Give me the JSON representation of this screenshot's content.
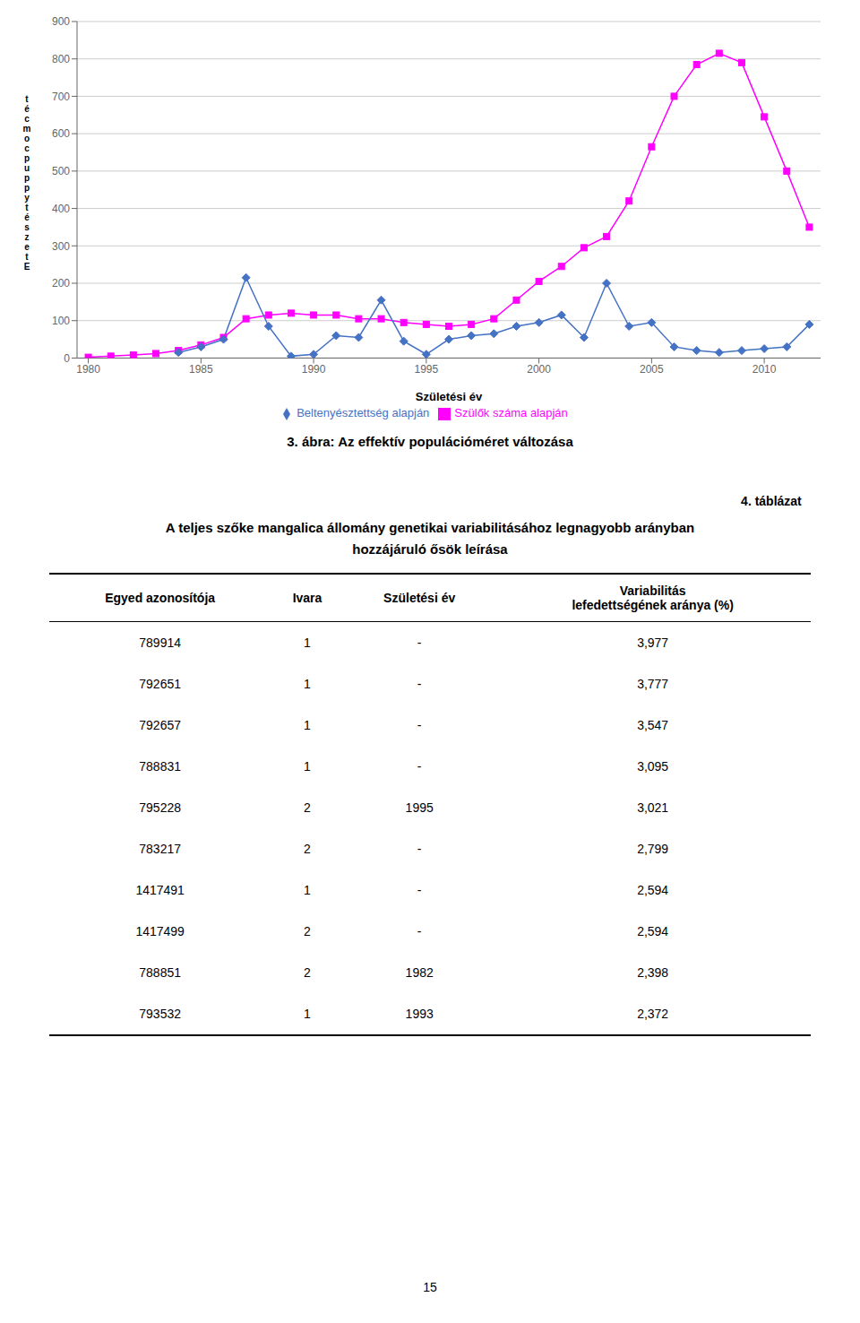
{
  "chart_data": {
    "type": "line",
    "title": "3. ábra: Az effektív populációméret változása",
    "x_label": "Születési év",
    "y_label": "t\né\nc\nm\no\nc\np\nu\np\np\ny\nt\né\ns\nz\ne\nt\nE",
    "x": [
      1980,
      1981,
      1982,
      1983,
      1984,
      1985,
      1986,
      1987,
      1988,
      1989,
      1990,
      1991,
      1992,
      1993,
      1994,
      1995,
      1996,
      1997,
      1998,
      1999,
      2000,
      2001,
      2002,
      2003,
      2004,
      2005,
      2006,
      2007,
      2008,
      2009,
      2010,
      2011,
      2012
    ],
    "series": [
      {
        "name": "Szülők száma alapján",
        "color": "#FF00FF",
        "marker": "square",
        "values": [
          2,
          5,
          8,
          12,
          20,
          35,
          55,
          105,
          115,
          120,
          115,
          115,
          105,
          105,
          95,
          90,
          85,
          90,
          105,
          155,
          205,
          245,
          295,
          325,
          420,
          565,
          700,
          785,
          815,
          790,
          645,
          500,
          350
        ]
      },
      {
        "name": "Beltenyésztettség alapján",
        "color": "#4472C4",
        "marker": "diamond",
        "values": [
          null,
          null,
          null,
          null,
          15,
          30,
          50,
          215,
          85,
          5,
          10,
          60,
          55,
          155,
          45,
          10,
          50,
          60,
          65,
          85,
          95,
          115,
          55,
          200,
          85,
          95,
          30,
          20,
          15,
          20,
          25,
          30,
          90
        ]
      }
    ],
    "xlim": [
      1979.5,
      2012.5
    ],
    "xticks": [
      1980,
      1985,
      1990,
      1995,
      2000,
      2005,
      2010
    ],
    "ylim": [
      0,
      900
    ],
    "yticks": [
      0,
      100,
      200,
      300,
      400,
      500,
      600,
      700,
      800,
      900
    ],
    "grid": true,
    "legend": "bottom"
  },
  "table": {
    "label": "4. táblázat",
    "title": [
      "A teljes szőke mangalica állomány genetikai variabilitásához legnagyobb arányban",
      "hozzájáruló ősök leírása"
    ],
    "columns": [
      "Egyed azonosítója",
      "Ivara",
      "Születési év",
      "Variabilitás\nlefedettségének aránya (%)"
    ],
    "rows": [
      [
        "789914",
        "1",
        "-",
        "3,977"
      ],
      [
        "792651",
        "1",
        "-",
        "3,777"
      ],
      [
        "792657",
        "1",
        "-",
        "3,547"
      ],
      [
        "788831",
        "1",
        "-",
        "3,095"
      ],
      [
        "795228",
        "2",
        "1995",
        "3,021"
      ],
      [
        "783217",
        "2",
        "-",
        "2,799"
      ],
      [
        "1417491",
        "1",
        "-",
        "2,594"
      ],
      [
        "1417499",
        "2",
        "-",
        "2,594"
      ],
      [
        "788851",
        "2",
        "1982",
        "2,398"
      ],
      [
        "793532",
        "1",
        "1993",
        "2,372"
      ]
    ]
  },
  "page_number": "15"
}
